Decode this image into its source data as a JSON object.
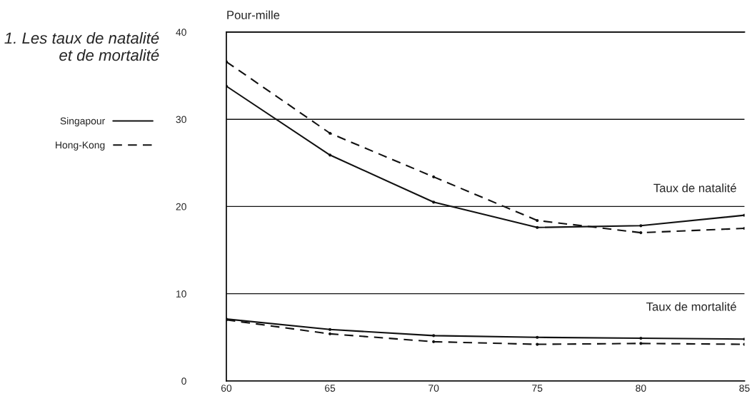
{
  "chart_data": {
    "type": "line",
    "title": "1. Les taux de natalité et de mortalité",
    "ylabel": "Pour-mille",
    "x": [
      60,
      65,
      70,
      75,
      80,
      85
    ],
    "series": [
      {
        "name": "Singapour",
        "color": "#111111",
        "line_style": "solid",
        "values": [
          33.8,
          25.9,
          20.5,
          17.6,
          17.8,
          19.0
        ]
      },
      {
        "name": "Hong-Kong",
        "color": "#111111",
        "line_style": "dashed",
        "values": [
          36.6,
          28.4,
          23.4,
          18.4,
          17.0,
          17.5
        ]
      },
      {
        "color": "#111111",
        "line_style": "solid",
        "values": [
          7.1,
          5.9,
          5.2,
          5.0,
          4.9,
          4.8
        ]
      },
      {
        "color": "#111111",
        "line_style": "dashed",
        "values": [
          7.0,
          5.4,
          4.5,
          4.2,
          4.3,
          4.2
        ]
      }
    ],
    "annotations": [
      "Taux de natalité",
      "Taux de mortalité"
    ],
    "xlim": [
      60,
      85
    ],
    "xticks": [
      60,
      65,
      70,
      75,
      80,
      85
    ],
    "ylim": [
      0,
      40
    ],
    "yticks": [
      0,
      10,
      20,
      30,
      40
    ],
    "grid": "y",
    "legend": "left",
    "marker": "circle"
  }
}
